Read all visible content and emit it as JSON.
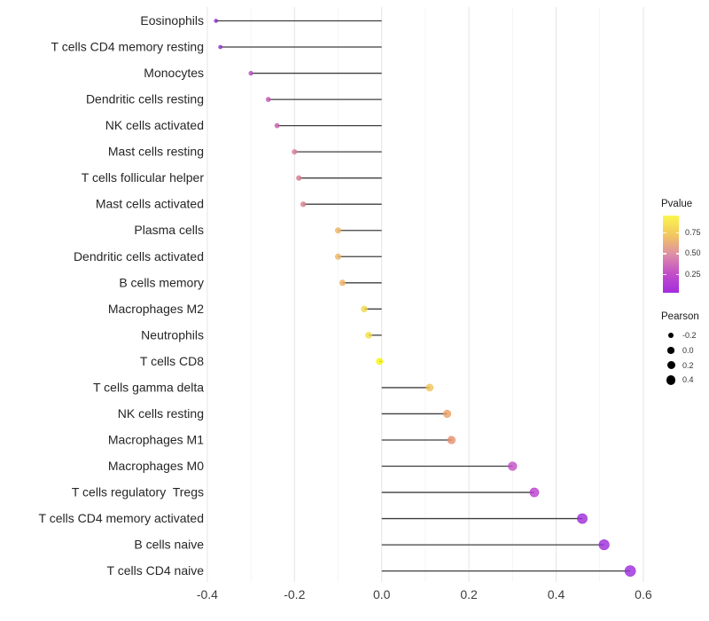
{
  "chart_data": {
    "type": "scatter",
    "variant": "lollipop",
    "orientation": "horizontal",
    "title": "",
    "xlabel": "",
    "ylabel": "",
    "xlim": [
      -0.42,
      0.63
    ],
    "x_ticks": [
      -0.4,
      -0.2,
      0.0,
      0.2,
      0.4,
      0.6
    ],
    "x_tick_labels": [
      "-0.4",
      "-0.2",
      "0.0",
      "0.2",
      "0.4",
      "0.6"
    ],
    "grid": true,
    "baseline": 0.0,
    "legend_position": "right",
    "categories": [
      "Eosinophils",
      "T cells CD4 memory resting",
      "Monocytes",
      "Dendritic cells resting",
      "NK cells activated",
      "Mast cells resting",
      "T cells follicular helper",
      "Mast cells activated",
      "Plasma cells",
      "Dendritic cells activated",
      "B cells memory",
      "Macrophages M2",
      "Neutrophils",
      "T cells CD8",
      "T cells gamma delta",
      "NK cells resting",
      "Macrophages M1",
      "Macrophages M0",
      "T cells regulatory  Tregs",
      "T cells CD4 memory activated",
      "B cells naive",
      "T cells CD4 naive"
    ],
    "series": [
      {
        "name": "Pearson",
        "values": [
          -0.38,
          -0.37,
          -0.3,
          -0.26,
          -0.24,
          -0.2,
          -0.19,
          -0.18,
          -0.1,
          -0.1,
          -0.09,
          -0.04,
          -0.03,
          -0.005,
          0.11,
          0.15,
          0.16,
          0.3,
          0.35,
          0.46,
          0.51,
          0.57
        ]
      }
    ],
    "point_colors": [
      "#8C2BC9",
      "#8F2EC9",
      "#B44CC0",
      "#C159B3",
      "#C763A9",
      "#D67E97",
      "#D67F93",
      "#D9828E",
      "#EDB76A",
      "#EDB668",
      "#EDB362",
      "#F2D950",
      "#F4DE42",
      "#F9F406",
      "#F1C45C",
      "#EE9F61",
      "#E78F6D",
      "#C44FC6",
      "#B93FD0",
      "#9E2CDA",
      "#9C2BDB",
      "#9B2ADC"
    ]
  },
  "legend": {
    "pvalue": {
      "title": "Pvalue",
      "tick_labels": [
        "0.75",
        "0.50",
        "0.25"
      ],
      "gradient": [
        "#FBF64D",
        "#F2C75F",
        "#DE8FA5",
        "#C24FC9",
        "#A42BDE"
      ]
    },
    "pearson": {
      "title": "Pearson",
      "item_labels": [
        "-0.2",
        "0.0",
        "0.2",
        "0.4"
      ],
      "dot_color": "#000000"
    }
  },
  "colors": {
    "stick": "#3F3F3F",
    "grid_major": "#E4E4E4",
    "grid_minor": "#F1F1F1",
    "axis_text": "#3D3D3D",
    "label_text": "#262626",
    "background": "#FFFFFF"
  }
}
